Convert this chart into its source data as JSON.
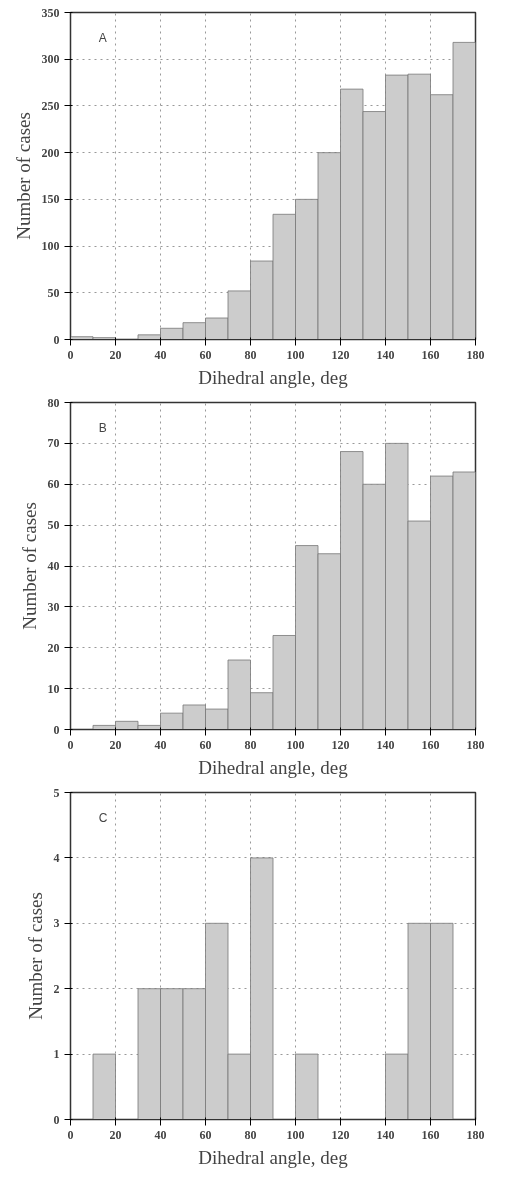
{
  "chart_data": [
    {
      "type": "histogram",
      "annotations": [
        "A"
      ],
      "xlabel": "Dihedral angle, deg",
      "ylabel": "Number of cases",
      "bins": [
        0,
        10,
        20,
        30,
        40,
        50,
        60,
        70,
        80,
        90,
        100,
        110,
        120,
        130,
        140,
        150,
        160,
        170,
        180
      ],
      "values": [
        3,
        2,
        0,
        5,
        12,
        18,
        23,
        52,
        84,
        134,
        150,
        200,
        268,
        244,
        283,
        284,
        262,
        318
      ],
      "color": "#cccccc",
      "xlim": [
        0,
        180
      ],
      "ylim": [
        0,
        350
      ],
      "xticks": [
        0,
        20,
        40,
        60,
        80,
        100,
        120,
        140,
        160,
        180
      ],
      "yticks": [
        0,
        50,
        100,
        150,
        200,
        250,
        300,
        350
      ],
      "grid": true
    },
    {
      "type": "histogram",
      "annotations": [
        "B"
      ],
      "xlabel": "Dihedral angle, deg",
      "ylabel": "Number of cases",
      "bins": [
        0,
        10,
        20,
        30,
        40,
        50,
        60,
        70,
        80,
        90,
        100,
        110,
        120,
        130,
        140,
        150,
        160,
        170,
        180
      ],
      "values": [
        0,
        1,
        2,
        1,
        4,
        6,
        5,
        17,
        9,
        23,
        45,
        43,
        68,
        60,
        70,
        51,
        62,
        63
      ],
      "color": "#cccccc",
      "xlim": [
        0,
        180
      ],
      "ylim": [
        0,
        80
      ],
      "xticks": [
        0,
        20,
        40,
        60,
        80,
        100,
        120,
        140,
        160,
        180
      ],
      "yticks": [
        0,
        10,
        20,
        30,
        40,
        50,
        60,
        70,
        80
      ],
      "grid": true
    },
    {
      "type": "histogram",
      "annotations": [
        "C"
      ],
      "xlabel": "Dihedral angle, deg",
      "ylabel": "Number of cases",
      "bins": [
        0,
        10,
        20,
        30,
        40,
        50,
        60,
        70,
        80,
        90,
        100,
        110,
        120,
        130,
        140,
        150,
        160,
        170,
        180
      ],
      "values": [
        0,
        1,
        0,
        2,
        2,
        2,
        3,
        1,
        4,
        0,
        1,
        0,
        0,
        0,
        1,
        3,
        3,
        0
      ],
      "color": "#cccccc",
      "xlim": [
        0,
        180
      ],
      "ylim": [
        0,
        5
      ],
      "xticks": [
        0,
        20,
        40,
        60,
        80,
        100,
        120,
        140,
        160,
        180
      ],
      "yticks": [
        0,
        1,
        2,
        3,
        4,
        5
      ],
      "grid": true
    }
  ]
}
